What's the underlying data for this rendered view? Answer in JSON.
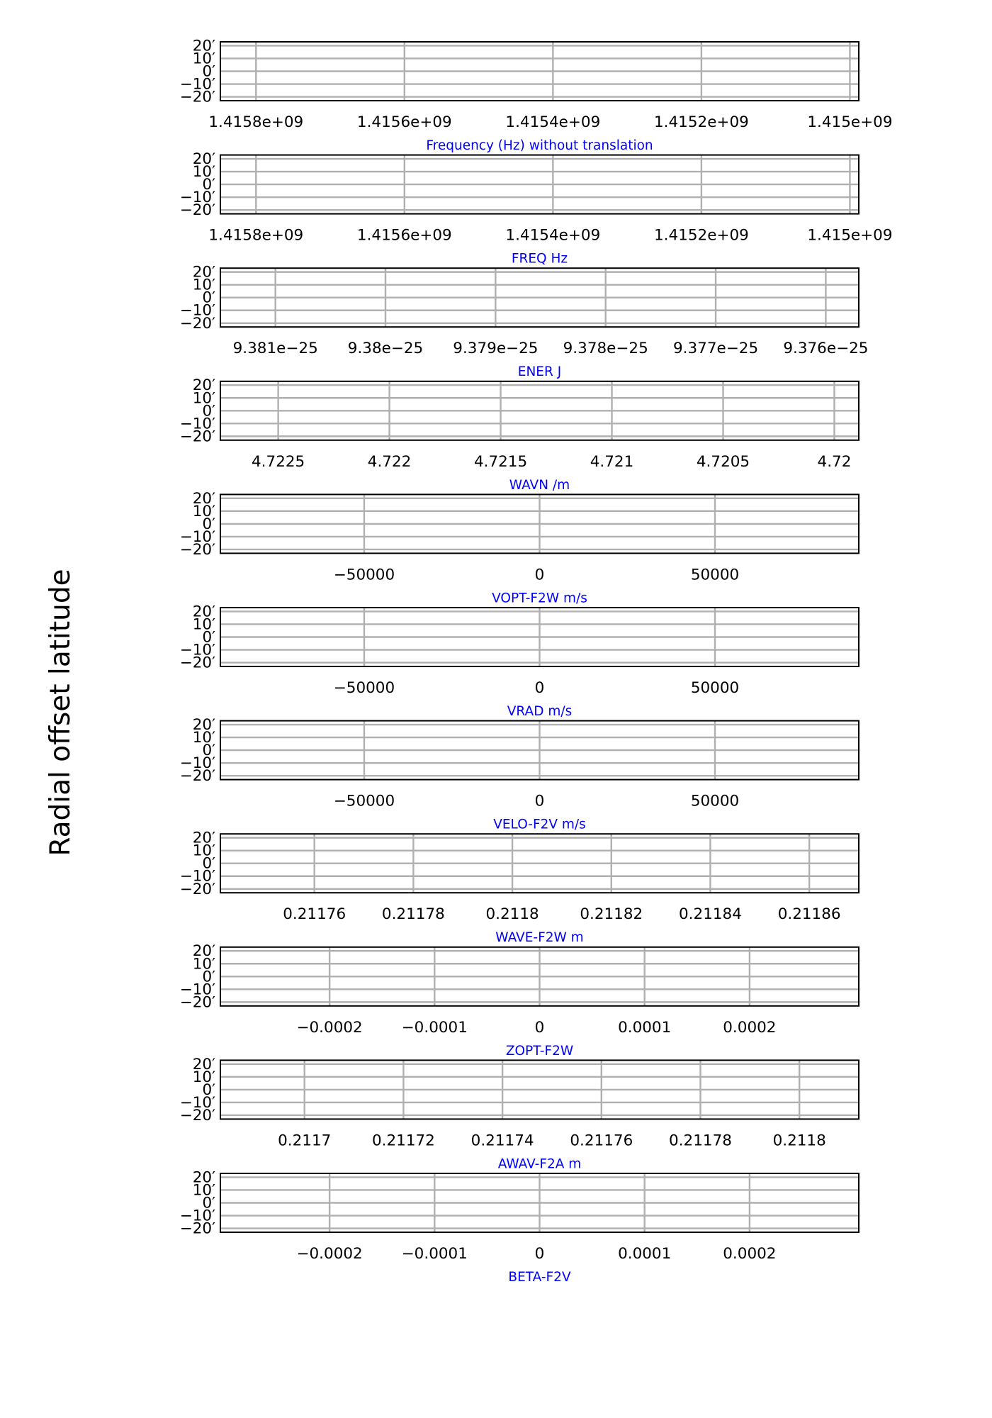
{
  "figure": {
    "ylabel": "Radial offset latitude",
    "ylabel_color": "#000000",
    "label_color": "#0000ff",
    "grid_color": "#b0b0b0"
  },
  "chart_data": [
    {
      "type": "line",
      "xlabel": "Frequency (Hz) without translation",
      "x_ticks": [
        "1.4158e+09",
        "1.4156e+09",
        "1.4154e+09",
        "1.4152e+09",
        "1.415e+09"
      ],
      "x_tick_values": [
        1415800000,
        1415600000,
        1415400000,
        1415200000,
        1415000000
      ],
      "xlim": [
        1415848000,
        1414988000
      ],
      "y_ticks": [
        "20′",
        "10′",
        "0′",
        "−10′",
        "−20′"
      ],
      "y_tick_values": [
        20,
        10,
        0,
        -10,
        -20
      ],
      "ylim": [
        -23,
        23
      ],
      "grid": true
    },
    {
      "type": "line",
      "xlabel": "FREQ Hz",
      "x_ticks": [
        "1.4158e+09",
        "1.4156e+09",
        "1.4154e+09",
        "1.4152e+09",
        "1.415e+09"
      ],
      "x_tick_values": [
        1415800000,
        1415600000,
        1415400000,
        1415200000,
        1415000000
      ],
      "xlim": [
        1415848000,
        1414988000
      ],
      "y_ticks": [
        "20′",
        "10′",
        "0′",
        "−10′",
        "−20′"
      ],
      "y_tick_values": [
        20,
        10,
        0,
        -10,
        -20
      ],
      "ylim": [
        -23,
        23
      ],
      "grid": true
    },
    {
      "type": "line",
      "xlabel": "ENER J",
      "x_ticks": [
        "9.381e−25",
        "9.38e−25",
        "9.379e−25",
        "9.378e−25",
        "9.377e−25",
        "9.376e−25"
      ],
      "x_tick_values": [
        9.381e-25,
        9.38e-25,
        9.379e-25,
        9.378e-25,
        9.377e-25,
        9.376e-25
      ],
      "xlim": [
        9.3815e-25,
        9.3757e-25
      ],
      "y_ticks": [
        "20′",
        "10′",
        "0′",
        "−10′",
        "−20′"
      ],
      "y_tick_values": [
        20,
        10,
        0,
        -10,
        -20
      ],
      "ylim": [
        -23,
        23
      ],
      "grid": true
    },
    {
      "type": "line",
      "xlabel": "WAVN /m",
      "x_ticks": [
        "4.7225",
        "4.722",
        "4.7215",
        "4.721",
        "4.7205",
        "4.72"
      ],
      "x_tick_values": [
        4.7225,
        4.722,
        4.7215,
        4.721,
        4.7205,
        4.72
      ],
      "xlim": [
        4.72276,
        4.71989
      ],
      "y_ticks": [
        "20′",
        "10′",
        "0′",
        "−10′",
        "−20′"
      ],
      "y_tick_values": [
        20,
        10,
        0,
        -10,
        -20
      ],
      "ylim": [
        -23,
        23
      ],
      "grid": true
    },
    {
      "type": "line",
      "xlabel": "VOPT-F2W m/s",
      "x_ticks": [
        "−50000",
        "0",
        "50000"
      ],
      "x_tick_values": [
        -50000,
        0,
        50000
      ],
      "xlim": [
        -91000,
        91000
      ],
      "y_ticks": [
        "20′",
        "10′",
        "0′",
        "−10′",
        "−20′"
      ],
      "y_tick_values": [
        20,
        10,
        0,
        -10,
        -20
      ],
      "ylim": [
        -23,
        23
      ],
      "grid": true
    },
    {
      "type": "line",
      "xlabel": "VRAD m/s",
      "x_ticks": [
        "−50000",
        "0",
        "50000"
      ],
      "x_tick_values": [
        -50000,
        0,
        50000
      ],
      "xlim": [
        -91000,
        91000
      ],
      "y_ticks": [
        "20′",
        "10′",
        "0′",
        "−10′",
        "−20′"
      ],
      "y_tick_values": [
        20,
        10,
        0,
        -10,
        -20
      ],
      "ylim": [
        -23,
        23
      ],
      "grid": true
    },
    {
      "type": "line",
      "xlabel": "VELO-F2V m/s",
      "x_ticks": [
        "−50000",
        "0",
        "50000"
      ],
      "x_tick_values": [
        -50000,
        0,
        50000
      ],
      "xlim": [
        -91000,
        91000
      ],
      "y_ticks": [
        "20′",
        "10′",
        "0′",
        "−10′",
        "−20′"
      ],
      "y_tick_values": [
        20,
        10,
        0,
        -10,
        -20
      ],
      "ylim": [
        -23,
        23
      ],
      "grid": true
    },
    {
      "type": "line",
      "xlabel": "WAVE-F2W m",
      "x_ticks": [
        "0.21176",
        "0.21178",
        "0.2118",
        "0.21182",
        "0.21184",
        "0.21186"
      ],
      "x_tick_values": [
        0.21176,
        0.21178,
        0.2118,
        0.21182,
        0.21184,
        0.21186
      ],
      "xlim": [
        0.211741,
        0.21187
      ],
      "y_ticks": [
        "20′",
        "10′",
        "0′",
        "−10′",
        "−20′"
      ],
      "y_tick_values": [
        20,
        10,
        0,
        -10,
        -20
      ],
      "ylim": [
        -23,
        23
      ],
      "grid": true
    },
    {
      "type": "line",
      "xlabel": "ZOPT-F2W",
      "x_ticks": [
        "−0.0002",
        "−0.0001",
        "0",
        "0.0001",
        "0.0002"
      ],
      "x_tick_values": [
        -0.0002,
        -0.0001,
        0,
        0.0001,
        0.0002
      ],
      "xlim": [
        -0.000304,
        0.000304
      ],
      "y_ticks": [
        "20′",
        "10′",
        "0′",
        "−10′",
        "−20′"
      ],
      "y_tick_values": [
        20,
        10,
        0,
        -10,
        -20
      ],
      "ylim": [
        -23,
        23
      ],
      "grid": true
    },
    {
      "type": "line",
      "xlabel": "AWAV-F2A m",
      "x_ticks": [
        "0.2117",
        "0.21172",
        "0.21174",
        "0.21176",
        "0.21178",
        "0.2118"
      ],
      "x_tick_values": [
        0.2117,
        0.21172,
        0.21174,
        0.21176,
        0.21178,
        0.2118
      ],
      "xlim": [
        0.211683,
        0.211812
      ],
      "y_ticks": [
        "20′",
        "10′",
        "0′",
        "−10′",
        "−20′"
      ],
      "y_tick_values": [
        20,
        10,
        0,
        -10,
        -20
      ],
      "ylim": [
        -23,
        23
      ],
      "grid": true
    },
    {
      "type": "line",
      "xlabel": "BETA-F2V",
      "x_ticks": [
        "−0.0002",
        "−0.0001",
        "0",
        "0.0001",
        "0.0002"
      ],
      "x_tick_values": [
        -0.0002,
        -0.0001,
        0,
        0.0001,
        0.0002
      ],
      "xlim": [
        -0.000304,
        0.000304
      ],
      "y_ticks": [
        "20′",
        "10′",
        "0′",
        "−10′",
        "−20′"
      ],
      "y_tick_values": [
        20,
        10,
        0,
        -10,
        -20
      ],
      "ylim": [
        -23,
        23
      ],
      "grid": true
    }
  ]
}
